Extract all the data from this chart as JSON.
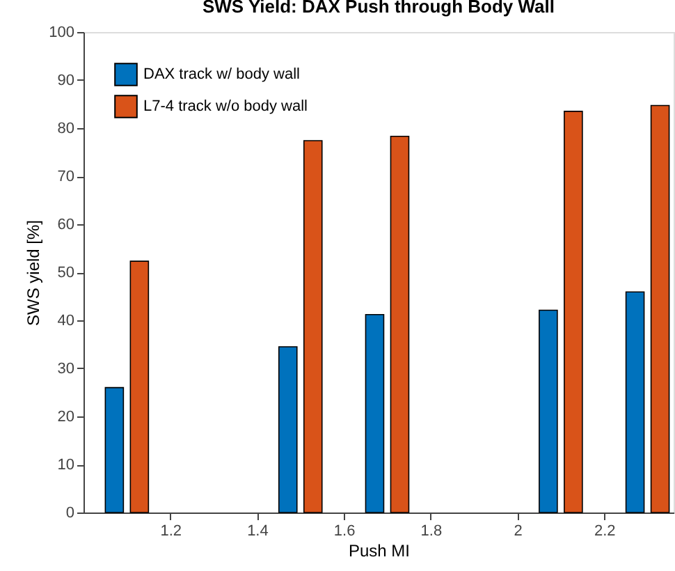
{
  "chart_data": {
    "type": "bar",
    "title": "SWS Yield: DAX Push through Body Wall",
    "xlabel": "Push MI",
    "ylabel": "SWS yield [%]",
    "x": [
      1.1,
      1.5,
      1.7,
      2.1,
      2.3
    ],
    "series": [
      {
        "name": "DAX track w/ body wall",
        "color": "#0072bd",
        "values": [
          26,
          34.5,
          41.2,
          42.1,
          45.9
        ]
      },
      {
        "name": "L7-4 track w/o body wall",
        "color": "#d95319",
        "values": [
          52.3,
          77.4,
          78.3,
          83.5,
          84.7
        ]
      }
    ],
    "xlim": [
      1.0,
      2.36
    ],
    "xticks": [
      1.2,
      1.4,
      1.6,
      1.8,
      2,
      2.2
    ],
    "ylim": [
      0,
      100
    ],
    "yticks": [
      0,
      10,
      20,
      30,
      40,
      50,
      60,
      70,
      80,
      90,
      100
    ],
    "grid": false,
    "legend": "top left"
  }
}
